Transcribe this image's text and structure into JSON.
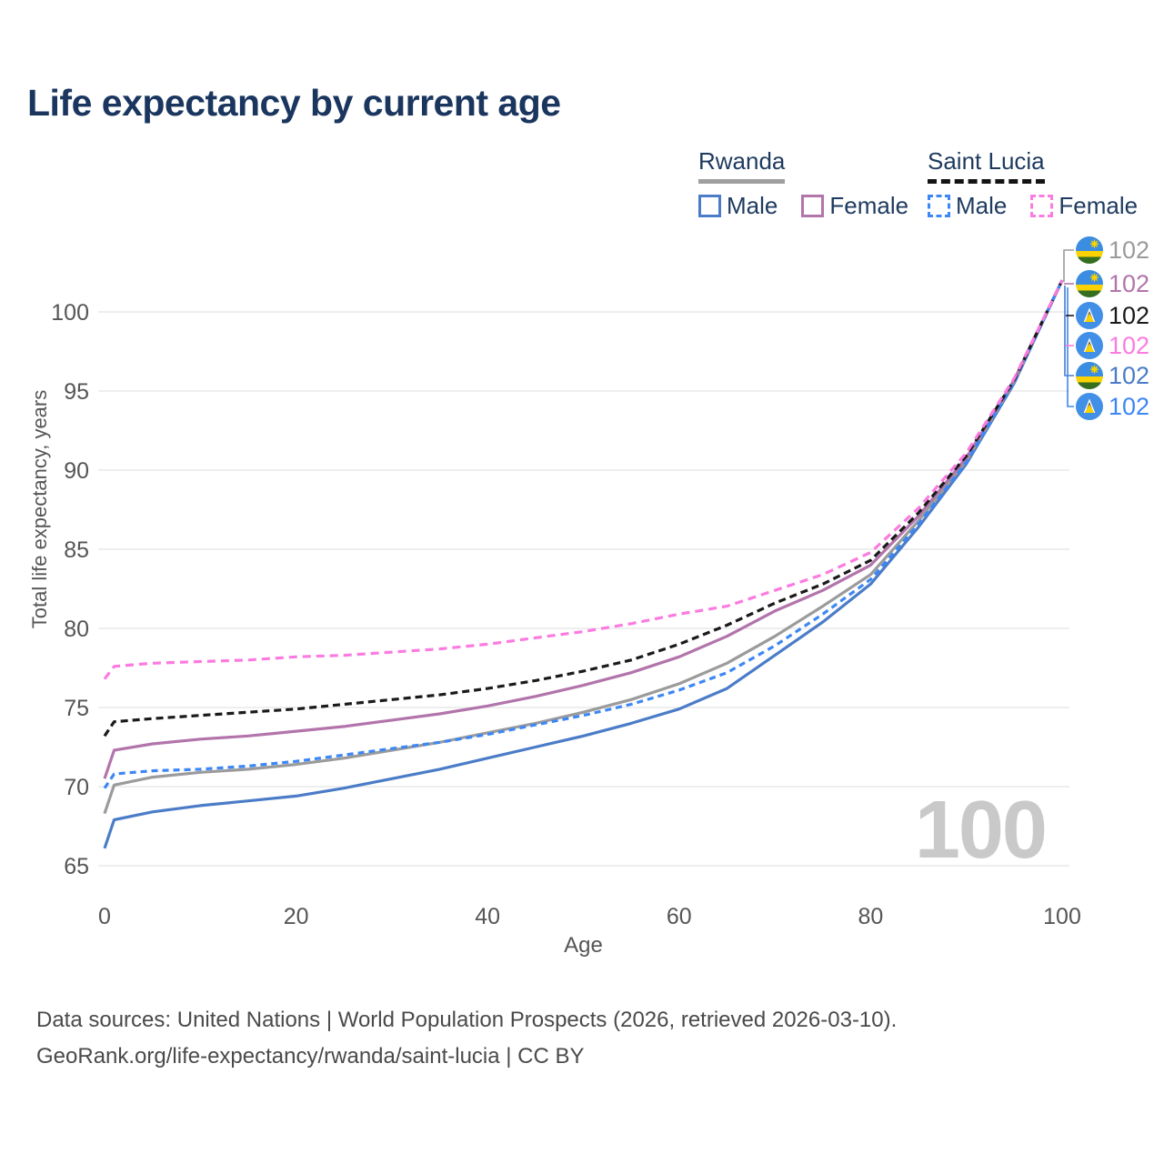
{
  "title": "Life expectancy by current age",
  "watermark": "100",
  "legend": {
    "groups": [
      {
        "country": "Rwanda",
        "line_style": "solid",
        "underline_color": "#9e9e9e",
        "items": [
          {
            "label": "Male",
            "color": "#4b7cc7"
          },
          {
            "label": "Female",
            "color": "#b274ab"
          }
        ]
      },
      {
        "country": "Saint Lucia",
        "line_style": "dashed",
        "underline_color": "#141414",
        "items": [
          {
            "label": "Male",
            "color": "#3d87f5"
          },
          {
            "label": "Female",
            "color": "#fb7be0"
          }
        ]
      }
    ]
  },
  "chart_data": {
    "type": "line",
    "title": "Life expectancy by current age",
    "xlabel": "Age",
    "ylabel": "Total life expectancy, years",
    "xlim": [
      0,
      100
    ],
    "ylim": [
      65,
      102
    ],
    "xticks": [
      0,
      20,
      40,
      60,
      80,
      100
    ],
    "yticks": [
      65,
      70,
      75,
      80,
      85,
      90,
      95,
      100
    ],
    "grid": "horizontal",
    "legend_position": "top-right",
    "ages": [
      0,
      1,
      5,
      10,
      15,
      20,
      25,
      30,
      35,
      40,
      45,
      50,
      55,
      60,
      65,
      70,
      75,
      80,
      85,
      90,
      95,
      100
    ],
    "series": [
      {
        "name": "Rwanda Male",
        "country": "Rwanda",
        "sex": "male",
        "line": "solid",
        "color": "#4b7cc7",
        "label_color": "#4b7cc7",
        "flag": "rwanda",
        "end_label": "102",
        "values": [
          66.1,
          67.9,
          68.4,
          68.8,
          69.1,
          69.4,
          69.9,
          70.5,
          71.1,
          71.8,
          72.5,
          73.2,
          74.0,
          74.9,
          76.2,
          78.3,
          80.4,
          82.8,
          86.4,
          90.4,
          95.5,
          102
        ]
      },
      {
        "name": "Rwanda Total",
        "country": "Rwanda",
        "sex": "both",
        "line": "solid",
        "color": "#9b9b9b",
        "label_color": "#9b9b9b",
        "flag": "rwanda",
        "end_label": "102",
        "values": [
          68.3,
          70.1,
          70.6,
          70.9,
          71.1,
          71.4,
          71.8,
          72.3,
          72.8,
          73.4,
          74.0,
          74.7,
          75.5,
          76.5,
          77.8,
          79.5,
          81.4,
          83.4,
          86.8,
          90.6,
          95.6,
          102
        ]
      },
      {
        "name": "Rwanda Female",
        "country": "Rwanda",
        "sex": "female",
        "line": "solid",
        "color": "#b274ab",
        "label_color": "#b274ab",
        "flag": "rwanda",
        "end_label": "102",
        "values": [
          70.5,
          72.3,
          72.7,
          73.0,
          73.2,
          73.5,
          73.8,
          74.2,
          74.6,
          75.1,
          75.7,
          76.4,
          77.2,
          78.2,
          79.5,
          81.1,
          82.4,
          84.0,
          87.1,
          90.8,
          95.7,
          102
        ]
      },
      {
        "name": "Saint Lucia Male",
        "country": "Saint Lucia",
        "sex": "male",
        "line": "dashed",
        "color": "#3d87f5",
        "label_color": "#3d87f5",
        "flag": "saint-lucia",
        "end_label": "102",
        "values": [
          69.9,
          70.8,
          71.0,
          71.1,
          71.3,
          71.6,
          72.0,
          72.4,
          72.8,
          73.3,
          73.9,
          74.5,
          75.2,
          76.1,
          77.2,
          78.9,
          80.9,
          83.1,
          86.6,
          90.5,
          95.6,
          102
        ]
      },
      {
        "name": "Saint Lucia Total",
        "country": "Saint Lucia",
        "sex": "both",
        "line": "dashed",
        "color": "#1a1a1a",
        "label_color": "#1a1a1a",
        "flag": "saint-lucia",
        "end_label": "102",
        "values": [
          73.2,
          74.1,
          74.3,
          74.5,
          74.7,
          74.9,
          75.2,
          75.5,
          75.8,
          76.2,
          76.7,
          77.3,
          78.0,
          79.0,
          80.2,
          81.6,
          82.8,
          84.3,
          87.3,
          90.9,
          95.7,
          102
        ]
      },
      {
        "name": "Saint Lucia Female",
        "country": "Saint Lucia",
        "sex": "female",
        "line": "dashed",
        "color": "#fb7be0",
        "label_color": "#fb7be0",
        "flag": "saint-lucia",
        "end_label": "102",
        "values": [
          76.8,
          77.6,
          77.8,
          77.9,
          78.0,
          78.2,
          78.3,
          78.5,
          78.7,
          79.0,
          79.4,
          79.8,
          80.3,
          80.9,
          81.4,
          82.4,
          83.4,
          84.8,
          87.6,
          91.1,
          95.8,
          102
        ]
      }
    ]
  },
  "footer": {
    "line1": "Data sources: United Nations | World Population Prospects (2026, retrieved 2026-03-10).",
    "line2": "GeoRank.org/life-expectancy/rwanda/saint-lucia | CC BY"
  }
}
